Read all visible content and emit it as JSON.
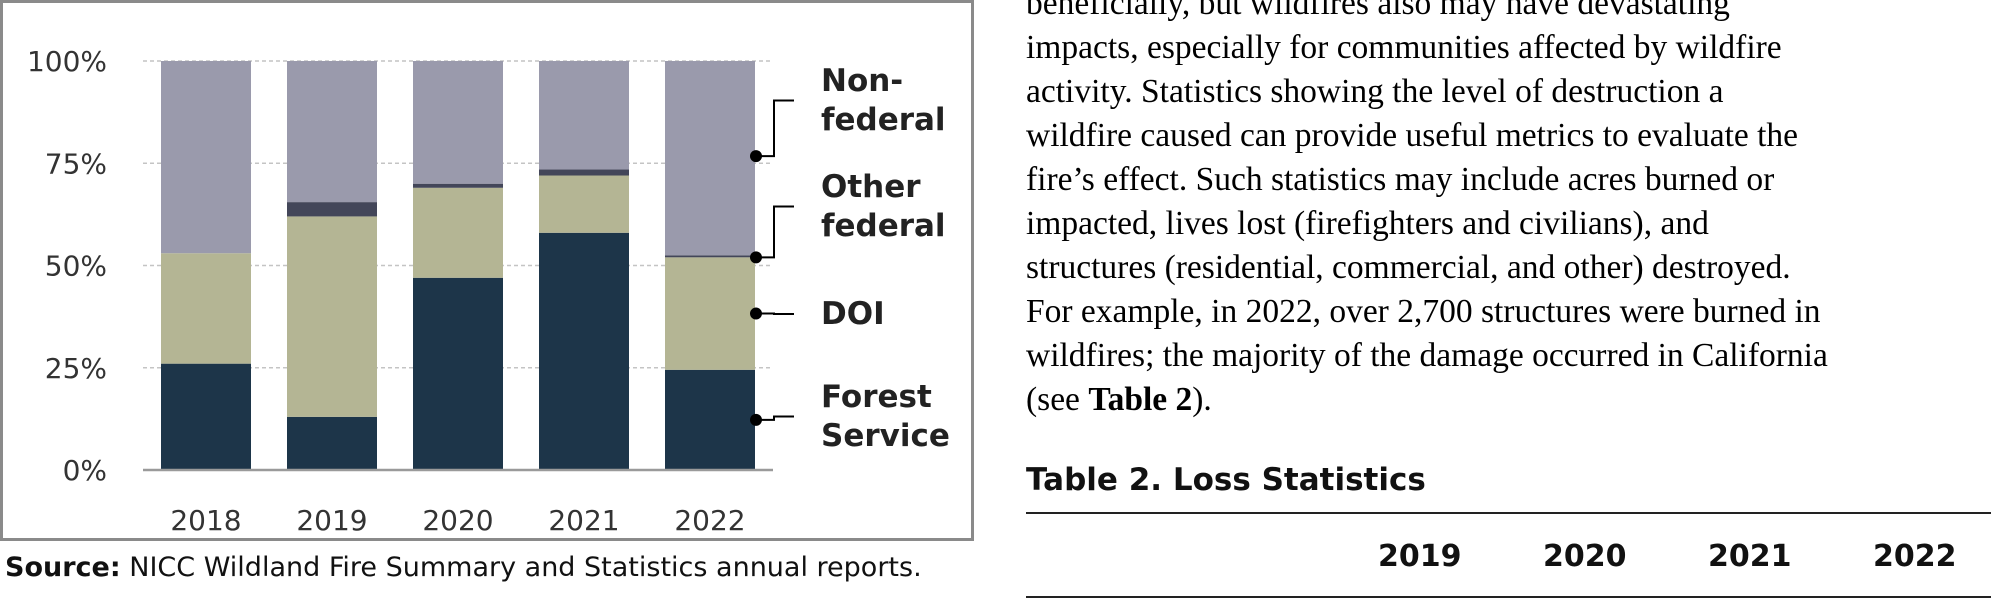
{
  "chart_data": {
    "type": "bar",
    "stacked": true,
    "categories": [
      "2018",
      "2019",
      "2020",
      "2021",
      "2022"
    ],
    "y_ticks": [
      "0%",
      "25%",
      "50%",
      "75%",
      "100%"
    ],
    "ylim": [
      0,
      100
    ],
    "grid": true,
    "legend_placement": "right",
    "series": [
      {
        "name": "Forest Service",
        "label": [
          "Forest",
          "Service"
        ],
        "color": "#1d3549",
        "values": [
          26,
          13,
          47,
          58,
          24.5
        ]
      },
      {
        "name": "DOI",
        "label": [
          "DOI"
        ],
        "color": "#b4b594",
        "values": [
          27,
          49,
          22,
          14,
          27.5
        ]
      },
      {
        "name": "Other federal",
        "label": [
          "Other",
          "federal"
        ],
        "color": "#434659",
        "values": [
          0,
          3.5,
          1,
          1.5,
          0.5
        ]
      },
      {
        "name": "Non-federal",
        "label": [
          "Non-",
          "federal"
        ],
        "color": "#9a9aac",
        "values": [
          47,
          34.5,
          30,
          26.5,
          47.5
        ]
      }
    ]
  },
  "source": {
    "label": "Source:",
    "text": "NICC Wildland Fire Summary and Statistics annual reports."
  },
  "paragraph_lines": [
    "beneficially, but wildfires also may have devastating",
    "impacts, especially for communities affected by wildfire",
    "activity. Statistics showing the level of destruction a",
    "wildfire caused can provide useful metrics to evaluate the",
    "fire’s effect. Such statistics may include acres burned or",
    "impacted, lives lost (firefighters and civilians), and",
    "structures (residential, commercial, and other) destroyed.",
    "For example, in 2022, over 2,700 structures were burned in",
    "wildfires; the majority of the damage occurred in California"
  ],
  "paragraph_last": {
    "before": "(see ",
    "bold": "Table 2",
    "after": ")."
  },
  "table": {
    "title": "Table 2. Loss Statistics",
    "columns": [
      "2019",
      "2020",
      "2021",
      "2022"
    ]
  }
}
